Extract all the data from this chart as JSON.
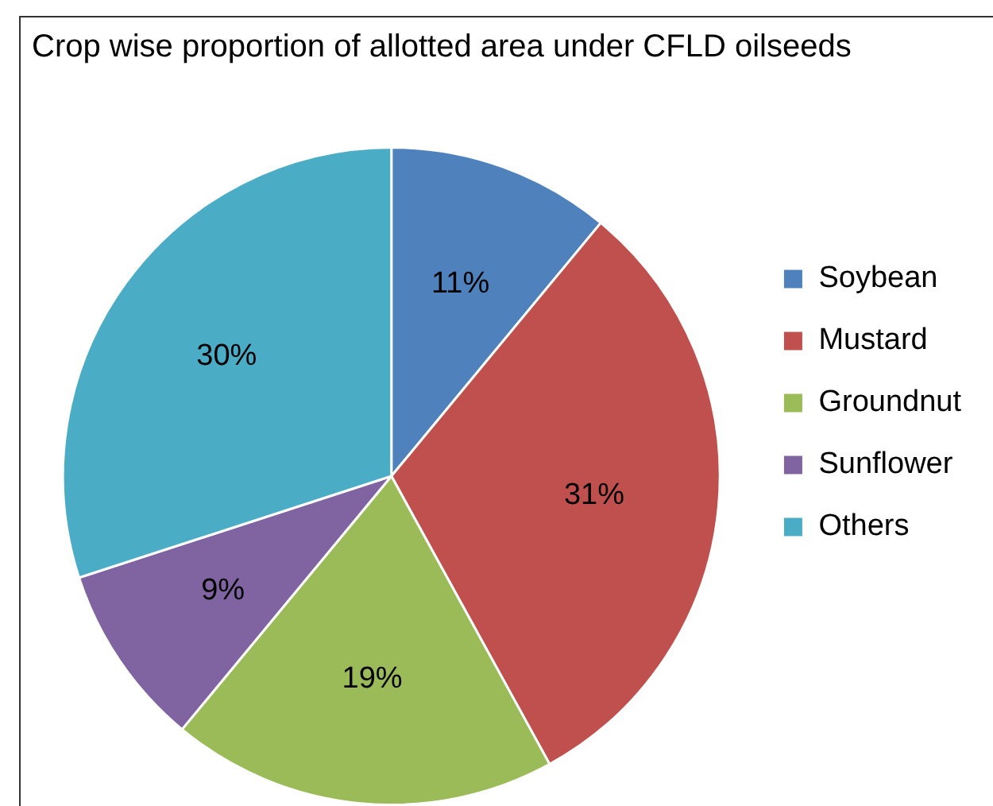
{
  "chart_data": {
    "type": "pie",
    "title": "Crop wise proportion of allotted area under CFLD oilseeds",
    "categories": [
      "Soybean",
      "Mustard",
      "Groundnut",
      "Sunflower",
      "Others"
    ],
    "values": [
      11,
      31,
      19,
      9,
      30
    ],
    "colors": [
      "#4f81bd",
      "#c0504d",
      "#9bbb59",
      "#8064a2",
      "#4bacc6"
    ],
    "value_labels": [
      "11%",
      "31%",
      "19%",
      "9%",
      "30%"
    ],
    "legend": "right"
  }
}
